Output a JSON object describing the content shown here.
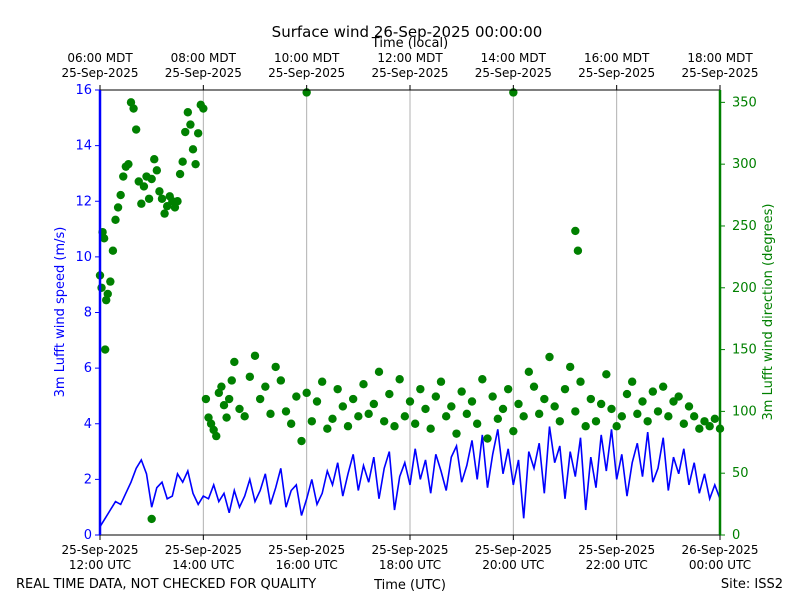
{
  "chart_data": {
    "type": "scatter",
    "title": "Surface wind 26-Sep-2025 00:00:00",
    "top_axis_label": "Time (local)",
    "xlabel": "Time (UTC)",
    "ylabel_left": "3m Lufft wind speed (m/s)",
    "ylabel_right": "3m Lufft wind direction (degrees)",
    "footer_left": "REAL TIME DATA, NOT CHECKED FOR QUALITY",
    "footer_right": "Site: ISS2",
    "xlim_hours": [
      12,
      24
    ],
    "ylim_left": [
      0,
      16
    ],
    "ylim_right": [
      0,
      360
    ],
    "left_ticks": [
      "0",
      "2",
      "4",
      "6",
      "8",
      "10",
      "12",
      "14",
      "16"
    ],
    "right_ticks": [
      "0",
      "50",
      "100",
      "150",
      "200",
      "250",
      "300",
      "350"
    ],
    "bottom_ticks": [
      {
        "h": 12,
        "line1": "25-Sep-2025",
        "line2": "12:00 UTC"
      },
      {
        "h": 14,
        "line1": "25-Sep-2025",
        "line2": "14:00 UTC"
      },
      {
        "h": 16,
        "line1": "25-Sep-2025",
        "line2": "16:00 UTC"
      },
      {
        "h": 18,
        "line1": "25-Sep-2025",
        "line2": "18:00 UTC"
      },
      {
        "h": 20,
        "line1": "25-Sep-2025",
        "line2": "20:00 UTC"
      },
      {
        "h": 22,
        "line1": "25-Sep-2025",
        "line2": "22:00 UTC"
      },
      {
        "h": 24,
        "line1": "26-Sep-2025",
        "line2": "00:00 UTC"
      }
    ],
    "top_ticks": [
      {
        "h": 12,
        "line1": "06:00 MDT",
        "line2": "25-Sep-2025"
      },
      {
        "h": 14,
        "line1": "08:00 MDT",
        "line2": "25-Sep-2025"
      },
      {
        "h": 16,
        "line1": "10:00 MDT",
        "line2": "25-Sep-2025"
      },
      {
        "h": 18,
        "line1": "12:00 MDT",
        "line2": "25-Sep-2025"
      },
      {
        "h": 20,
        "line1": "14:00 MDT",
        "line2": "25-Sep-2025"
      },
      {
        "h": 22,
        "line1": "16:00 MDT",
        "line2": "25-Sep-2025"
      },
      {
        "h": 24,
        "line1": "18:00 MDT",
        "line2": "25-Sep-2025"
      }
    ],
    "gridlines_x": [
      14,
      16,
      18,
      20,
      22
    ],
    "speed_color": "#0000ff",
    "direction_color": "#008000",
    "speed_series": {
      "name": "3m Lufft wind speed",
      "x": [
        12.0,
        12.1,
        12.2,
        12.3,
        12.4,
        12.5,
        12.6,
        12.7,
        12.8,
        12.9,
        13.0,
        13.1,
        13.2,
        13.3,
        13.4,
        13.5,
        13.6,
        13.7,
        13.8,
        13.9,
        14.0,
        14.1,
        14.2,
        14.3,
        14.4,
        14.5,
        14.6,
        14.7,
        14.8,
        14.9,
        15.0,
        15.1,
        15.2,
        15.3,
        15.4,
        15.5,
        15.6,
        15.7,
        15.8,
        15.9,
        16.0,
        16.1,
        16.2,
        16.3,
        16.4,
        16.5,
        16.6,
        16.7,
        16.8,
        16.9,
        17.0,
        17.1,
        17.2,
        17.3,
        17.4,
        17.5,
        17.6,
        17.7,
        17.8,
        17.9,
        18.0,
        18.1,
        18.2,
        18.3,
        18.4,
        18.5,
        18.6,
        18.7,
        18.8,
        18.9,
        19.0,
        19.1,
        19.2,
        19.3,
        19.4,
        19.5,
        19.6,
        19.7,
        19.8,
        19.9,
        20.0,
        20.1,
        20.2,
        20.3,
        20.4,
        20.5,
        20.6,
        20.7,
        20.8,
        20.9,
        21.0,
        21.1,
        21.2,
        21.3,
        21.4,
        21.5,
        21.6,
        21.7,
        21.8,
        21.9,
        22.0,
        22.1,
        22.2,
        22.3,
        22.4,
        22.5,
        22.6,
        22.7,
        22.8,
        22.9,
        23.0,
        23.1,
        23.2,
        23.3,
        23.4,
        23.5,
        23.6,
        23.7,
        23.8,
        23.9,
        24.0
      ],
      "values": [
        0.3,
        0.6,
        0.9,
        1.2,
        1.1,
        1.5,
        1.9,
        2.4,
        2.7,
        2.2,
        1.0,
        1.7,
        1.9,
        1.3,
        1.4,
        2.2,
        1.9,
        2.3,
        1.5,
        1.1,
        1.4,
        1.3,
        1.8,
        1.2,
        1.5,
        0.8,
        1.6,
        1.0,
        1.4,
        2.0,
        1.2,
        1.6,
        2.2,
        1.1,
        1.7,
        2.4,
        1.0,
        1.6,
        1.8,
        0.7,
        1.3,
        2.0,
        1.1,
        1.5,
        2.3,
        1.8,
        2.6,
        1.4,
        2.2,
        2.9,
        1.6,
        2.5,
        1.9,
        2.8,
        1.3,
        2.4,
        3.0,
        0.9,
        2.1,
        2.6,
        1.8,
        3.1,
        2.0,
        2.7,
        1.5,
        2.9,
        2.3,
        1.6,
        2.8,
        3.2,
        1.9,
        2.5,
        3.4,
        2.0,
        3.6,
        1.7,
        2.9,
        3.8,
        2.2,
        3.1,
        1.8,
        2.7,
        0.6,
        3.0,
        2.4,
        3.3,
        1.5,
        3.9,
        2.6,
        3.2,
        1.3,
        3.0,
        2.1,
        3.5,
        0.9,
        2.8,
        1.7,
        3.6,
        2.3,
        3.8,
        2.0,
        2.9,
        1.4,
        2.6,
        3.3,
        2.1,
        3.7,
        1.9,
        2.4,
        3.5,
        1.6,
        2.8,
        2.2,
        3.1,
        1.8,
        2.6,
        1.5,
        2.2,
        1.3,
        1.8,
        1.3
      ]
    },
    "direction_series": {
      "name": "3m Lufft wind direction",
      "x": [
        12.0,
        12.03,
        12.05,
        12.08,
        12.1,
        12.12,
        12.15,
        12.2,
        12.25,
        12.3,
        12.35,
        12.4,
        12.45,
        12.5,
        12.55,
        12.6,
        12.65,
        12.7,
        12.75,
        12.8,
        12.85,
        12.9,
        12.95,
        13.0,
        13.05,
        13.1,
        13.15,
        13.2,
        13.25,
        13.3,
        13.35,
        13.4,
        13.45,
        13.5,
        13.55,
        13.6,
        13.65,
        13.7,
        13.75,
        13.8,
        13.85,
        13.9,
        13.95,
        14.0,
        14.05,
        14.1,
        14.15,
        14.2,
        14.25,
        14.3,
        14.35,
        14.4,
        14.45,
        14.5,
        14.55,
        14.6,
        14.7,
        14.8,
        14.9,
        15.0,
        15.1,
        15.2,
        15.3,
        15.4,
        15.5,
        15.6,
        15.7,
        15.8,
        15.9,
        16.0,
        16.1,
        16.2,
        16.3,
        16.4,
        16.5,
        16.6,
        16.7,
        16.8,
        16.9,
        17.0,
        17.1,
        17.2,
        17.3,
        17.4,
        17.5,
        17.6,
        17.7,
        17.8,
        17.9,
        18.0,
        18.1,
        18.2,
        18.3,
        18.4,
        18.5,
        18.6,
        18.7,
        18.8,
        18.9,
        19.0,
        19.1,
        19.2,
        19.3,
        19.4,
        19.5,
        19.6,
        19.7,
        19.8,
        19.9,
        20.0,
        20.1,
        20.2,
        20.3,
        20.4,
        20.5,
        20.6,
        20.7,
        20.8,
        20.9,
        21.0,
        21.1,
        21.2,
        21.3,
        21.4,
        21.5,
        21.6,
        21.7,
        21.8,
        21.9,
        22.0,
        22.1,
        22.2,
        22.3,
        22.4,
        22.5,
        22.6,
        22.7,
        22.8,
        22.9,
        23.0,
        23.1,
        23.2,
        23.3,
        23.4,
        23.5,
        23.6,
        23.7,
        23.8,
        23.9,
        24.0
      ],
      "values": [
        210,
        200,
        245,
        240,
        150,
        190,
        195,
        205,
        230,
        255,
        265,
        275,
        290,
        298,
        300,
        350,
        345,
        328,
        286,
        268,
        282,
        290,
        272,
        288,
        304,
        295,
        278,
        272,
        260,
        266,
        274,
        270,
        265,
        270,
        292,
        302,
        326,
        342,
        332,
        312,
        300,
        325,
        348,
        345,
        110,
        95,
        90,
        85,
        80,
        115,
        120,
        105,
        95,
        110,
        125,
        140,
        102,
        96,
        128,
        145,
        110,
        120,
        98,
        136,
        125,
        100,
        90,
        112,
        76,
        115,
        92,
        108,
        124,
        86,
        94,
        118,
        104,
        88,
        110,
        96,
        122,
        98,
        106,
        132,
        92,
        114,
        88,
        126,
        96,
        108,
        90,
        118,
        102,
        86,
        112,
        124,
        96,
        104,
        82,
        116,
        98,
        108,
        90,
        126,
        78,
        112,
        94,
        102,
        118,
        84,
        106,
        96,
        132,
        120,
        98,
        110,
        144,
        104,
        92,
        118,
        136,
        100,
        124,
        88,
        110,
        92,
        106,
        130,
        102,
        88,
        96,
        114,
        124,
        98,
        108,
        92,
        116,
        100,
        120,
        96,
        108,
        112,
        90,
        104,
        96,
        86,
        92,
        88,
        94,
        86
      ]
    },
    "direction_outliers": {
      "x": [
        13.0,
        16.0,
        20.0,
        21.2,
        21.25
      ],
      "values": [
        13,
        358,
        358,
        246,
        230
      ]
    }
  }
}
